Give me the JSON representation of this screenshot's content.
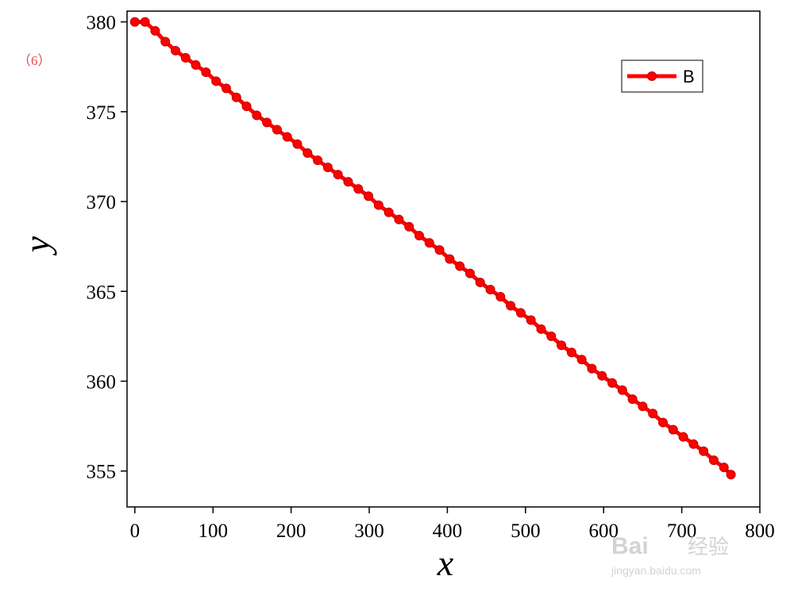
{
  "corner_label": "（6）",
  "colors": {
    "series": "#ff0000",
    "corner_label": "#e05050",
    "axis": "#000000"
  },
  "chart_data": {
    "type": "line",
    "title": "",
    "xlabel": "x",
    "ylabel": "y",
    "xlim": [
      -10,
      800
    ],
    "ylim": [
      353.0,
      380.6
    ],
    "xticks": [
      0,
      100,
      200,
      300,
      400,
      500,
      600,
      700,
      800
    ],
    "yticks": [
      355,
      360,
      365,
      370,
      375,
      380
    ],
    "grid": false,
    "legend_position": "top-right",
    "series": [
      {
        "name": "B",
        "color": "#ff0000",
        "marker": "circle",
        "x": [
          0,
          13,
          26,
          39,
          52,
          65,
          78,
          91,
          104,
          117,
          130,
          143,
          156,
          169,
          182,
          195,
          208,
          221,
          234,
          247,
          260,
          273,
          286,
          299,
          312,
          325,
          338,
          351,
          364,
          377,
          390,
          403,
          416,
          429,
          442,
          455,
          468,
          481,
          494,
          507,
          520,
          533,
          546,
          559,
          572,
          585,
          598,
          611,
          624,
          637,
          650,
          663,
          676,
          689,
          702,
          715,
          728,
          741,
          754,
          763
        ],
        "y": [
          380.0,
          380.0,
          379.5,
          378.9,
          378.4,
          378.0,
          377.6,
          377.2,
          376.7,
          376.3,
          375.8,
          375.3,
          374.8,
          374.4,
          374.0,
          373.6,
          373.2,
          372.7,
          372.3,
          371.9,
          371.5,
          371.1,
          370.7,
          370.3,
          369.8,
          369.4,
          369.0,
          368.6,
          368.1,
          367.7,
          367.3,
          366.8,
          366.4,
          366.0,
          365.5,
          365.1,
          364.7,
          364.2,
          363.8,
          363.4,
          362.9,
          362.5,
          362.0,
          361.6,
          361.2,
          360.7,
          360.3,
          359.9,
          359.5,
          359.0,
          358.6,
          358.2,
          357.7,
          357.3,
          356.9,
          356.5,
          356.1,
          355.6,
          355.2,
          354.8
        ]
      }
    ]
  },
  "watermark": {
    "brand": "Bai",
    "brand2": "经验",
    "url": "jingyan.baidu.com"
  }
}
